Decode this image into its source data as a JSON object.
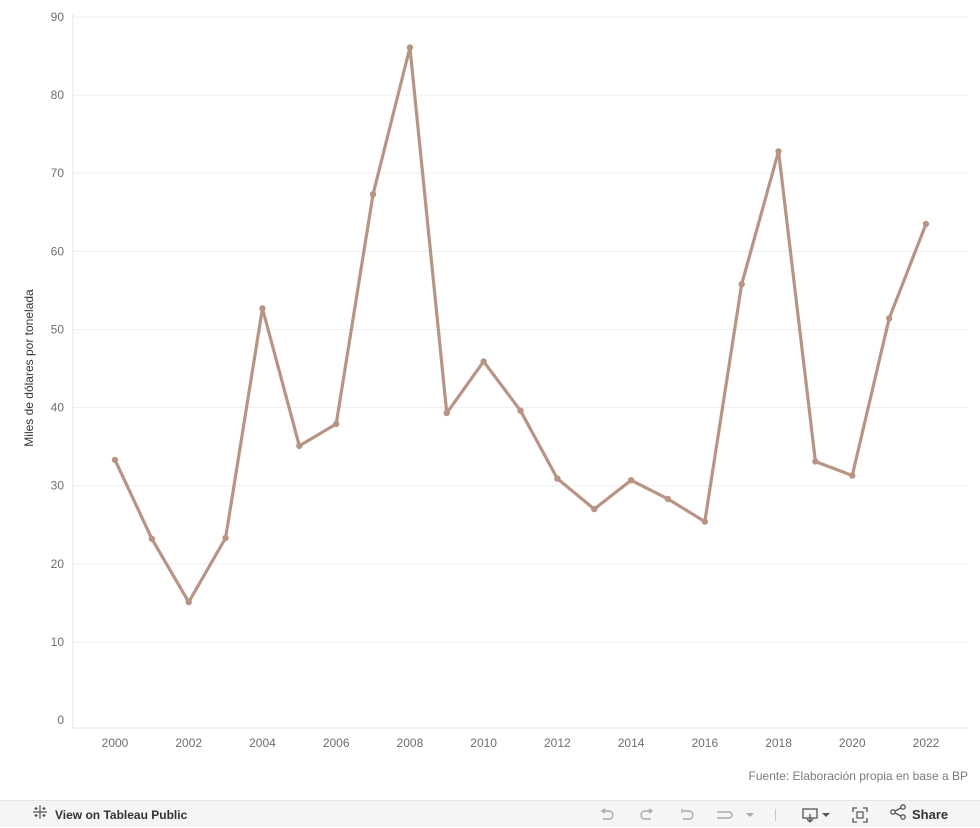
{
  "chart_data": {
    "type": "line",
    "title": "",
    "xlabel": "",
    "ylabel": "Miles de dólares por tonelada",
    "x": [
      2000,
      2001,
      2002,
      2003,
      2004,
      2005,
      2006,
      2007,
      2008,
      2009,
      2010,
      2011,
      2012,
      2013,
      2014,
      2015,
      2016,
      2017,
      2018,
      2019,
      2020,
      2021,
      2022
    ],
    "series": [
      {
        "values": [
          33.3,
          23.2,
          15.1,
          23.3,
          52.7,
          35.1,
          37.9,
          67.3,
          86.1,
          39.3,
          45.9,
          39.6,
          30.9,
          27.0,
          30.7,
          28.3,
          25.4,
          55.8,
          72.8,
          33.1,
          31.3,
          51.4,
          63.5
        ],
        "color": "#b89484"
      }
    ],
    "ylim": [
      0,
      90
    ],
    "y_ticks": [
      "0",
      "10",
      "20",
      "30",
      "40",
      "50",
      "60",
      "70",
      "80",
      "90"
    ],
    "x_ticks": [
      "2000",
      "2002",
      "2004",
      "2006",
      "2008",
      "2010",
      "2012",
      "2014",
      "2016",
      "2018",
      "2020",
      "2022"
    ],
    "grid": true
  },
  "caption": "Fuente: Elaboración propia en base a BP",
  "toolbar": {
    "view_label": "View on Tableau Public",
    "share_label": "Share",
    "icons": [
      "tableau-logo-icon",
      "undo-icon",
      "redo-icon",
      "revert-icon",
      "pause-icon",
      "dropdown-icon",
      "download-icon",
      "fullscreen-icon",
      "share-icon"
    ]
  }
}
